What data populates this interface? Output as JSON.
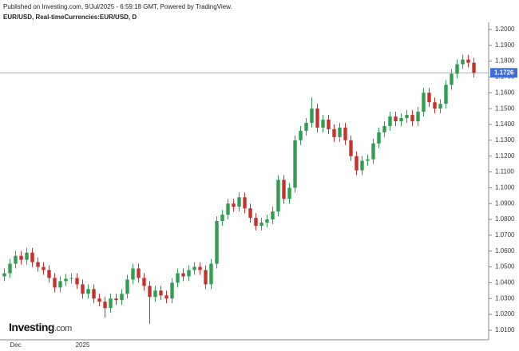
{
  "header": {
    "published": "Published on Investing.com, 9/Jul/2025 - 6:59:18 GMT, Powered by TradingView.",
    "symbol": "EUR/USD, Real-timeCurrencies:EUR/USD, D"
  },
  "logo": {
    "name": "Investing",
    "suffix": ".com"
  },
  "chart_data": {
    "type": "candlestick",
    "categories": [
      null,
      null,
      "Dec",
      null,
      null,
      null,
      null,
      null,
      null,
      null,
      null,
      null,
      null,
      null,
      "2025",
      null,
      null,
      null,
      null,
      null,
      null,
      null,
      null,
      null,
      null,
      null,
      null,
      null,
      null,
      null,
      null,
      null,
      null,
      null,
      null,
      null,
      null,
      null,
      null,
      null,
      null,
      null,
      null,
      null,
      null,
      null,
      null,
      null,
      null,
      null,
      null,
      null,
      null,
      null,
      null,
      null,
      null,
      null,
      null,
      null,
      null,
      null,
      null,
      null,
      null,
      null,
      null,
      null,
      null,
      null,
      null,
      null,
      null,
      null,
      null,
      null,
      null,
      null,
      null,
      null,
      null,
      null,
      null,
      null,
      null
    ],
    "open": [
      1.044,
      1.046,
      1.052,
      1.057,
      1.0545,
      1.059,
      1.053,
      1.05,
      1.048,
      1.043,
      1.037,
      1.041,
      1.0425,
      1.043,
      1.039,
      1.033,
      1.036,
      1.03,
      1.028,
      1.024,
      1.03,
      1.029,
      1.033,
      1.042,
      1.049,
      1.043,
      1.038,
      1.031,
      1.035,
      1.032,
      1.03,
      1.04,
      1.046,
      1.044,
      1.048,
      1.05,
      1.048,
      1.039,
      1.052,
      1.079,
      1.083,
      1.09,
      1.088,
      1.094,
      1.087,
      1.081,
      1.076,
      1.078,
      1.08,
      1.085,
      1.105,
      1.093,
      1.1,
      1.13,
      1.136,
      1.141,
      1.15,
      1.138,
      1.143,
      1.137,
      1.132,
      1.138,
      1.13,
      1.12,
      1.111,
      1.117,
      1.118,
      1.128,
      1.135,
      1.139,
      1.145,
      1.142,
      1.144,
      1.146,
      1.142,
      1.148,
      1.16,
      1.154,
      1.15,
      1.153,
      1.165,
      1.172,
      1.178,
      1.181,
      1.179
    ],
    "high": [
      1.049,
      1.055,
      1.06,
      1.06,
      1.062,
      1.062,
      1.056,
      1.053,
      1.051,
      1.046,
      1.044,
      1.0455,
      1.046,
      1.046,
      1.042,
      1.039,
      1.039,
      1.033,
      1.031,
      1.033,
      1.033,
      1.036,
      1.045,
      1.052,
      1.052,
      1.046,
      1.041,
      1.038,
      1.038,
      1.035,
      1.043,
      1.049,
      1.049,
      1.051,
      1.053,
      1.053,
      1.051,
      1.055,
      1.082,
      1.086,
      1.093,
      1.093,
      1.097,
      1.097,
      1.09,
      1.084,
      1.081,
      1.083,
      1.088,
      1.108,
      1.108,
      1.103,
      1.133,
      1.139,
      1.144,
      1.157,
      1.153,
      1.146,
      1.146,
      1.14,
      1.141,
      1.141,
      1.133,
      1.123,
      1.12,
      1.121,
      1.131,
      1.138,
      1.142,
      1.148,
      1.148,
      1.147,
      1.149,
      1.149,
      1.151,
      1.163,
      1.163,
      1.157,
      1.156,
      1.168,
      1.175,
      1.181,
      1.184,
      1.184,
      1.182
    ],
    "low": [
      1.041,
      1.043,
      1.049,
      1.0515,
      1.0515,
      1.05,
      1.047,
      1.045,
      1.04,
      1.034,
      1.034,
      1.038,
      1.0395,
      1.036,
      1.03,
      1.03,
      1.027,
      1.025,
      1.018,
      1.021,
      1.026,
      1.026,
      1.03,
      1.039,
      1.04,
      1.035,
      1.014,
      1.028,
      1.029,
      1.027,
      1.027,
      1.037,
      1.041,
      1.041,
      1.045,
      1.045,
      1.036,
      1.036,
      1.049,
      1.076,
      1.08,
      1.085,
      1.085,
      1.084,
      1.078,
      1.073,
      1.073,
      1.075,
      1.077,
      1.082,
      1.09,
      1.09,
      1.097,
      1.127,
      1.133,
      1.138,
      1.135,
      1.135,
      1.134,
      1.129,
      1.129,
      1.127,
      1.117,
      1.108,
      1.108,
      1.114,
      1.115,
      1.125,
      1.132,
      1.136,
      1.139,
      1.139,
      1.141,
      1.139,
      1.139,
      1.145,
      1.151,
      1.147,
      1.147,
      1.15,
      1.162,
      1.169,
      1.175,
      1.176,
      1.1696
    ],
    "close": [
      1.046,
      1.052,
      1.057,
      1.0545,
      1.059,
      1.053,
      1.05,
      1.048,
      1.043,
      1.037,
      1.041,
      1.0425,
      1.043,
      1.039,
      1.033,
      1.036,
      1.03,
      1.028,
      1.024,
      1.03,
      1.029,
      1.033,
      1.042,
      1.049,
      1.043,
      1.038,
      1.031,
      1.035,
      1.032,
      1.03,
      1.04,
      1.046,
      1.044,
      1.048,
      1.05,
      1.048,
      1.039,
      1.052,
      1.079,
      1.083,
      1.09,
      1.088,
      1.094,
      1.087,
      1.081,
      1.076,
      1.078,
      1.08,
      1.085,
      1.105,
      1.093,
      1.1,
      1.13,
      1.136,
      1.141,
      1.15,
      1.138,
      1.143,
      1.137,
      1.132,
      1.138,
      1.13,
      1.12,
      1.111,
      1.117,
      1.118,
      1.128,
      1.135,
      1.139,
      1.145,
      1.142,
      1.144,
      1.146,
      1.142,
      1.148,
      1.16,
      1.154,
      1.15,
      1.153,
      1.165,
      1.172,
      1.178,
      1.181,
      1.179,
      1.1726
    ],
    "up_color": "#2e9e4f",
    "down_color": "#c9302c",
    "ylim": [
      1.0009,
      1.2045
    ],
    "yticks": [
      {
        "value": 1.01,
        "label": "1.0100"
      },
      {
        "value": 1.02,
        "label": "1.0200"
      },
      {
        "value": 1.03,
        "label": "1.0300"
      },
      {
        "value": 1.04,
        "label": "1.0400"
      },
      {
        "value": 1.05,
        "label": "1.0500"
      },
      {
        "value": 1.06,
        "label": "1.0600"
      },
      {
        "value": 1.07,
        "label": "1.0700"
      },
      {
        "value": 1.08,
        "label": "1.0800"
      },
      {
        "value": 1.09,
        "label": "1.0900"
      },
      {
        "value": 1.1,
        "label": "1.1000"
      },
      {
        "value": 1.11,
        "label": "1.1100"
      },
      {
        "value": 1.12,
        "label": "1.1200"
      },
      {
        "value": 1.13,
        "label": "1.1300"
      },
      {
        "value": 1.14,
        "label": "1.1400"
      },
      {
        "value": 1.15,
        "label": "1.1500"
      },
      {
        "value": 1.16,
        "label": "1.1600"
      },
      {
        "value": 1.17,
        "label": "1.1700"
      },
      {
        "value": 1.18,
        "label": "1.1800"
      },
      {
        "value": 1.19,
        "label": "1.1900"
      },
      {
        "value": 1.2,
        "label": "1.2000"
      }
    ],
    "last_price": {
      "value": 1.1726,
      "label": "1.1726"
    },
    "last_price_color": "#3d6fd6"
  }
}
